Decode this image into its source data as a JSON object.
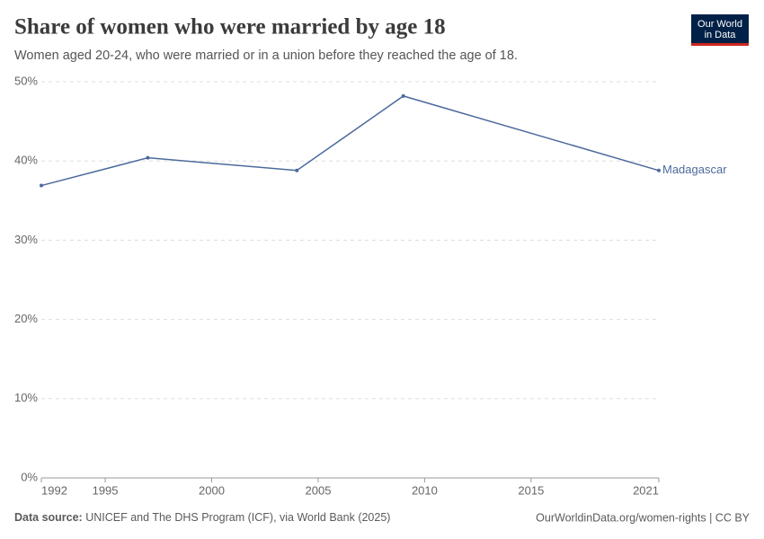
{
  "chart_data": {
    "type": "line",
    "title": "Share of women who were married by age 18",
    "subtitle": "Women aged 20-24, who were married or in a union before they reached the age of 18.",
    "logo": [
      "Our World",
      "in Data"
    ],
    "source_label": "Data source:",
    "source": "UNICEF and The DHS Program (ICF), via World Bank (2025)",
    "footer_right": "OurWorldinData.org/women-rights | CC BY",
    "x": [
      1992,
      1997,
      2004,
      2009,
      2021
    ],
    "series": [
      {
        "name": "Madagascar",
        "color": "#4c6a9c",
        "values": [
          36.9,
          40.4,
          38.8,
          48.2,
          38.8
        ]
      }
    ],
    "xlim": [
      1992,
      2021
    ],
    "xticks": [
      1992,
      1995,
      2000,
      2005,
      2010,
      2015,
      2021
    ],
    "ylim": [
      0,
      50
    ],
    "yticks": [
      {
        "value": 0,
        "label": "0%"
      },
      {
        "value": 10,
        "label": "10%"
      },
      {
        "value": 20,
        "label": "20%"
      },
      {
        "value": 30,
        "label": "30%"
      },
      {
        "value": 40,
        "label": "40%"
      },
      {
        "value": 50,
        "label": "50%"
      }
    ],
    "grid": true
  }
}
